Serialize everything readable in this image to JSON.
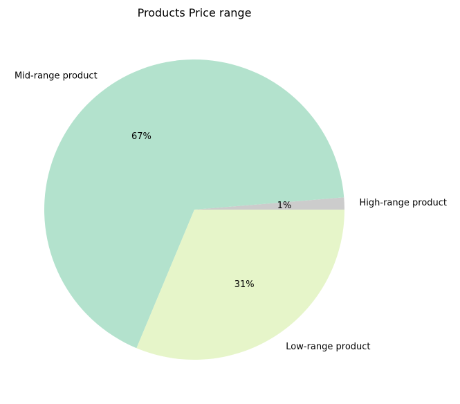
{
  "chart_data": {
    "type": "pie",
    "title": "Products Price range",
    "categories": [
      "High-range product",
      "Mid-range product",
      "Low-range product"
    ],
    "values": [
      1.3,
      67.4,
      31.3
    ],
    "percent_labels": [
      "1%",
      "67%",
      "31%"
    ],
    "colors": [
      "#cccccc",
      "#b3e2cd",
      "#e6f5c9"
    ],
    "start_angle_deg": 0,
    "direction": "counterclockwise"
  }
}
